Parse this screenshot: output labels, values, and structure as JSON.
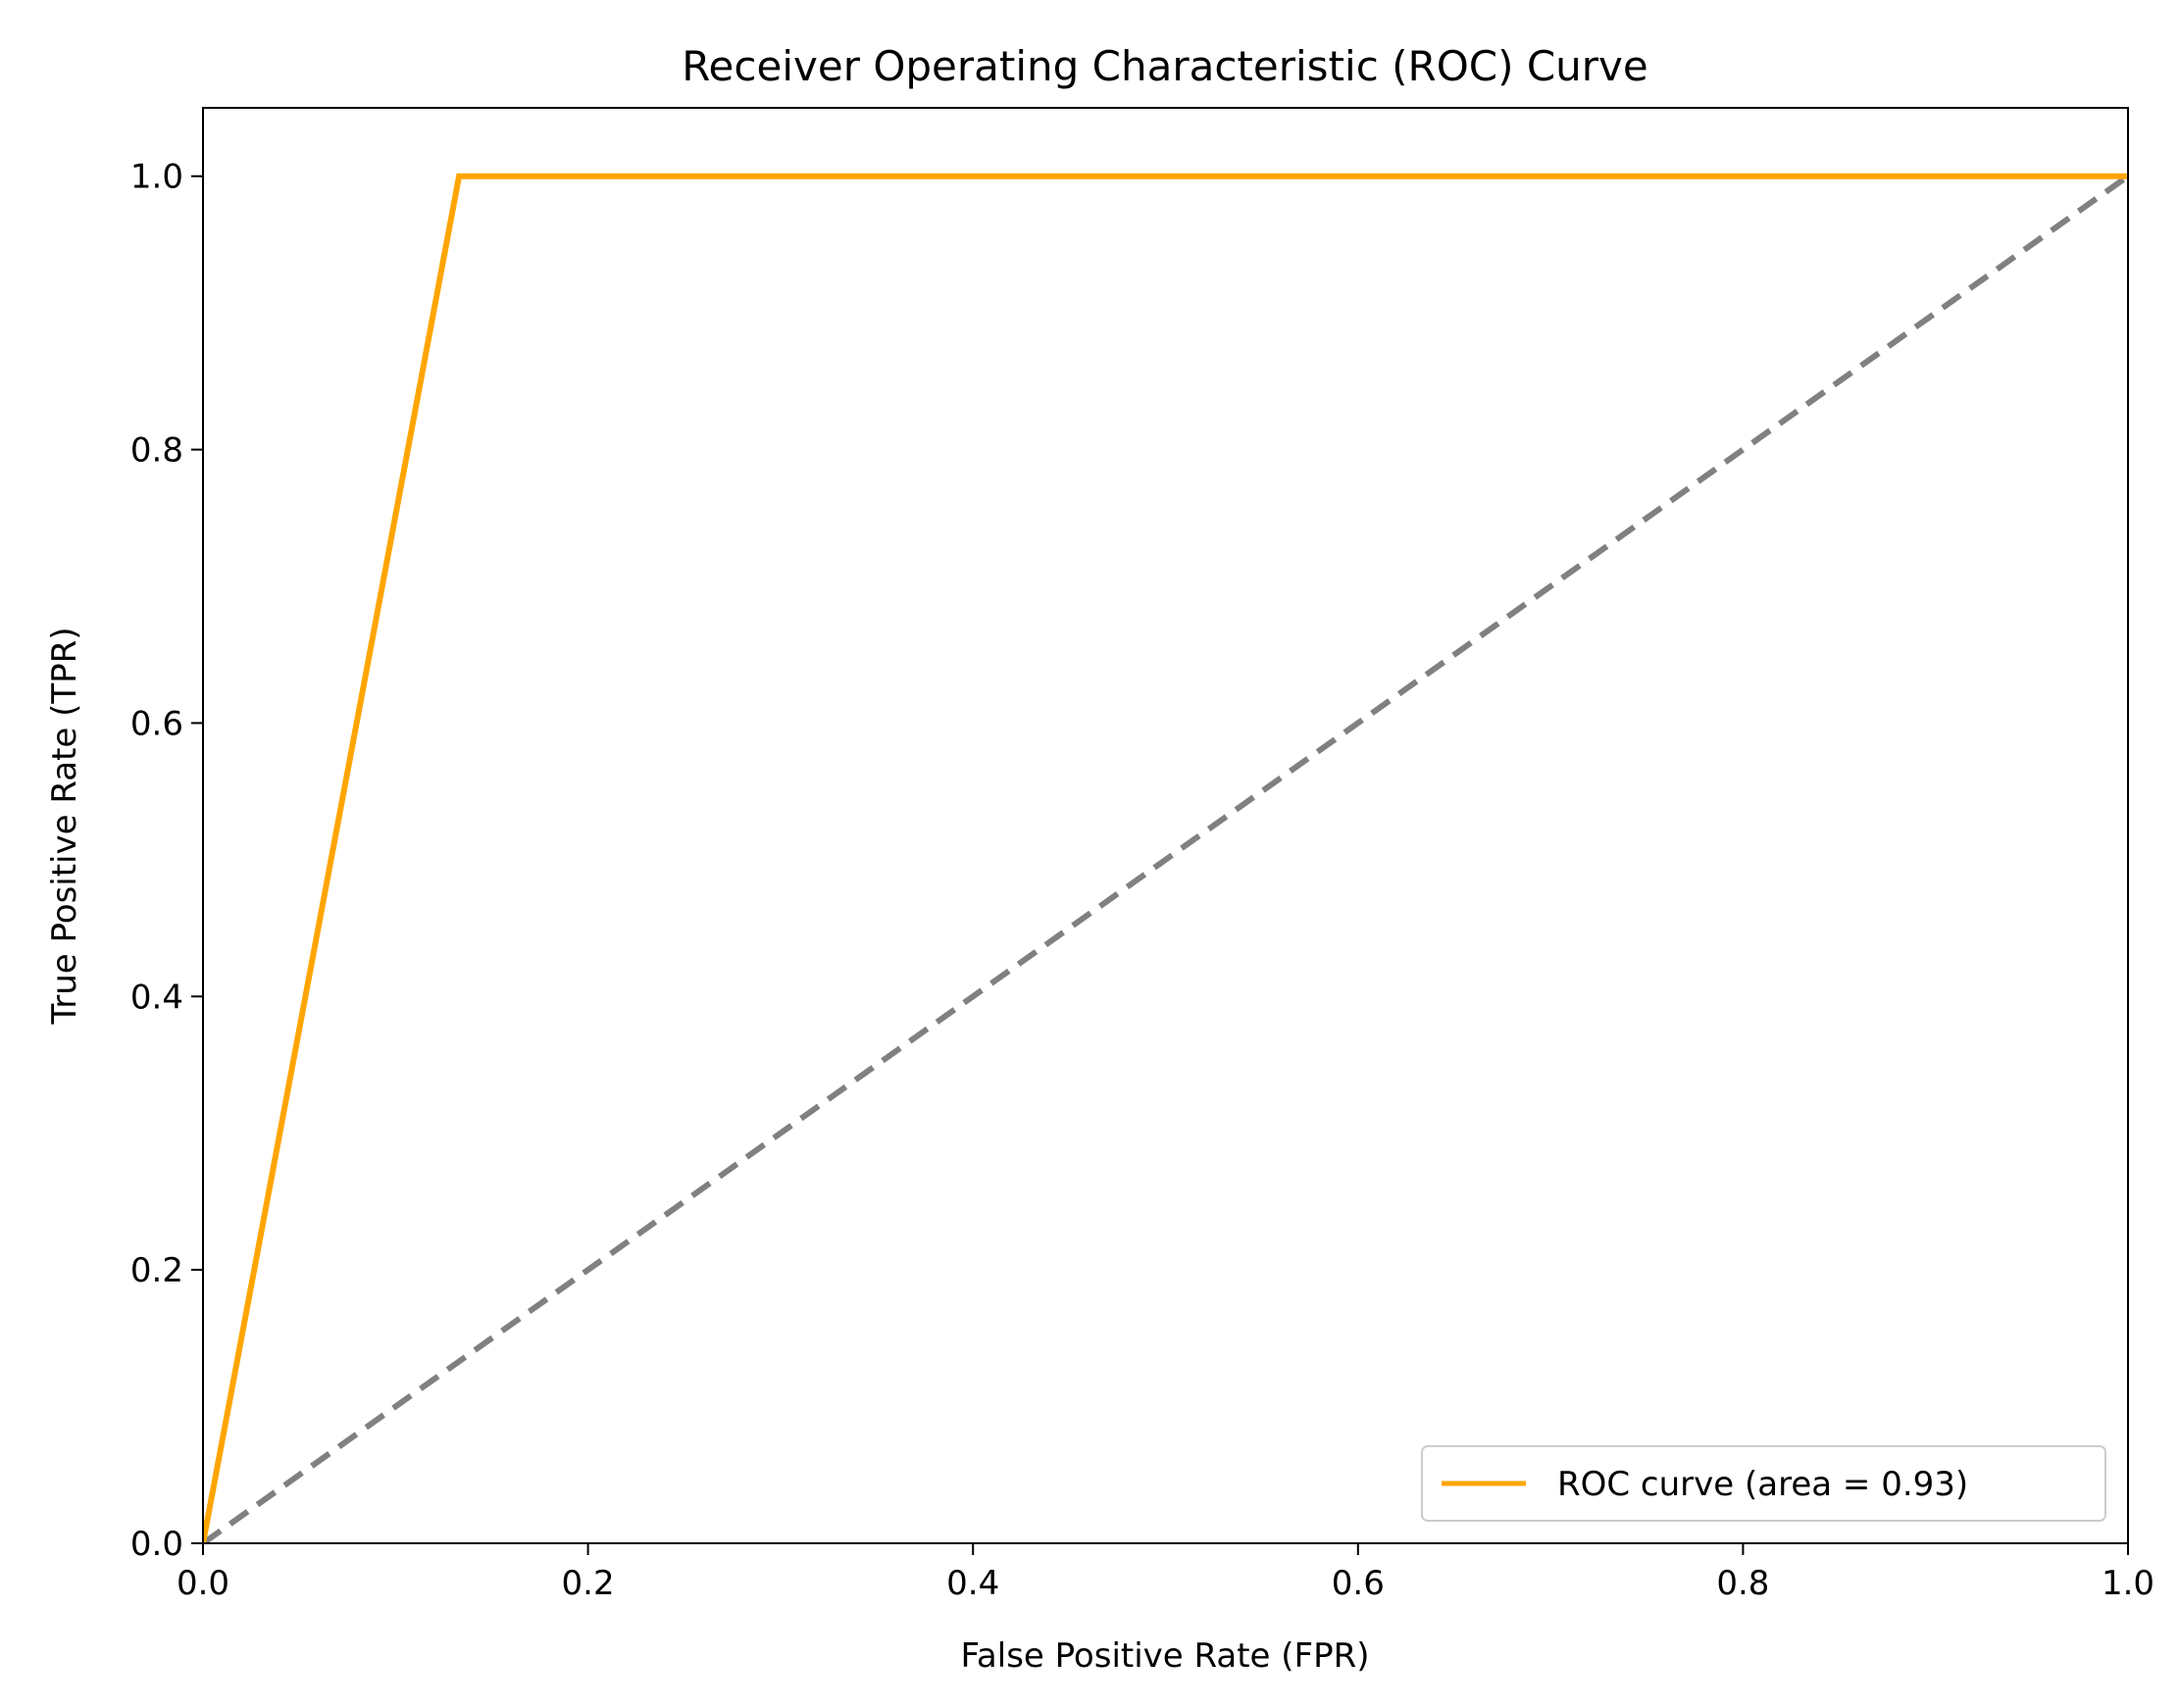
{
  "chart_data": {
    "type": "line",
    "title": "Receiver Operating Characteristic (ROC) Curve",
    "xlabel": "False Positive Rate (FPR)",
    "ylabel": "True Positive Rate (TPR)",
    "xlim": [
      0.0,
      1.0
    ],
    "ylim": [
      0.0,
      1.05
    ],
    "xticks": [
      "0.0",
      "0.2",
      "0.4",
      "0.6",
      "0.8",
      "1.0"
    ],
    "yticks": [
      "0.0",
      "0.2",
      "0.4",
      "0.6",
      "0.8",
      "1.0"
    ],
    "grid": false,
    "legend_position": "lower-right",
    "series": [
      {
        "name": "ROC curve (area = 0.93)",
        "color": "#ffa500",
        "line_style": "solid",
        "x": [
          0.0,
          0.133,
          1.0
        ],
        "y": [
          0.0,
          1.0,
          1.0
        ]
      },
      {
        "color": "#808080",
        "line_style": "dashed",
        "x": [
          0.0,
          1.0
        ],
        "y": [
          0.0,
          1.0
        ]
      }
    ]
  }
}
